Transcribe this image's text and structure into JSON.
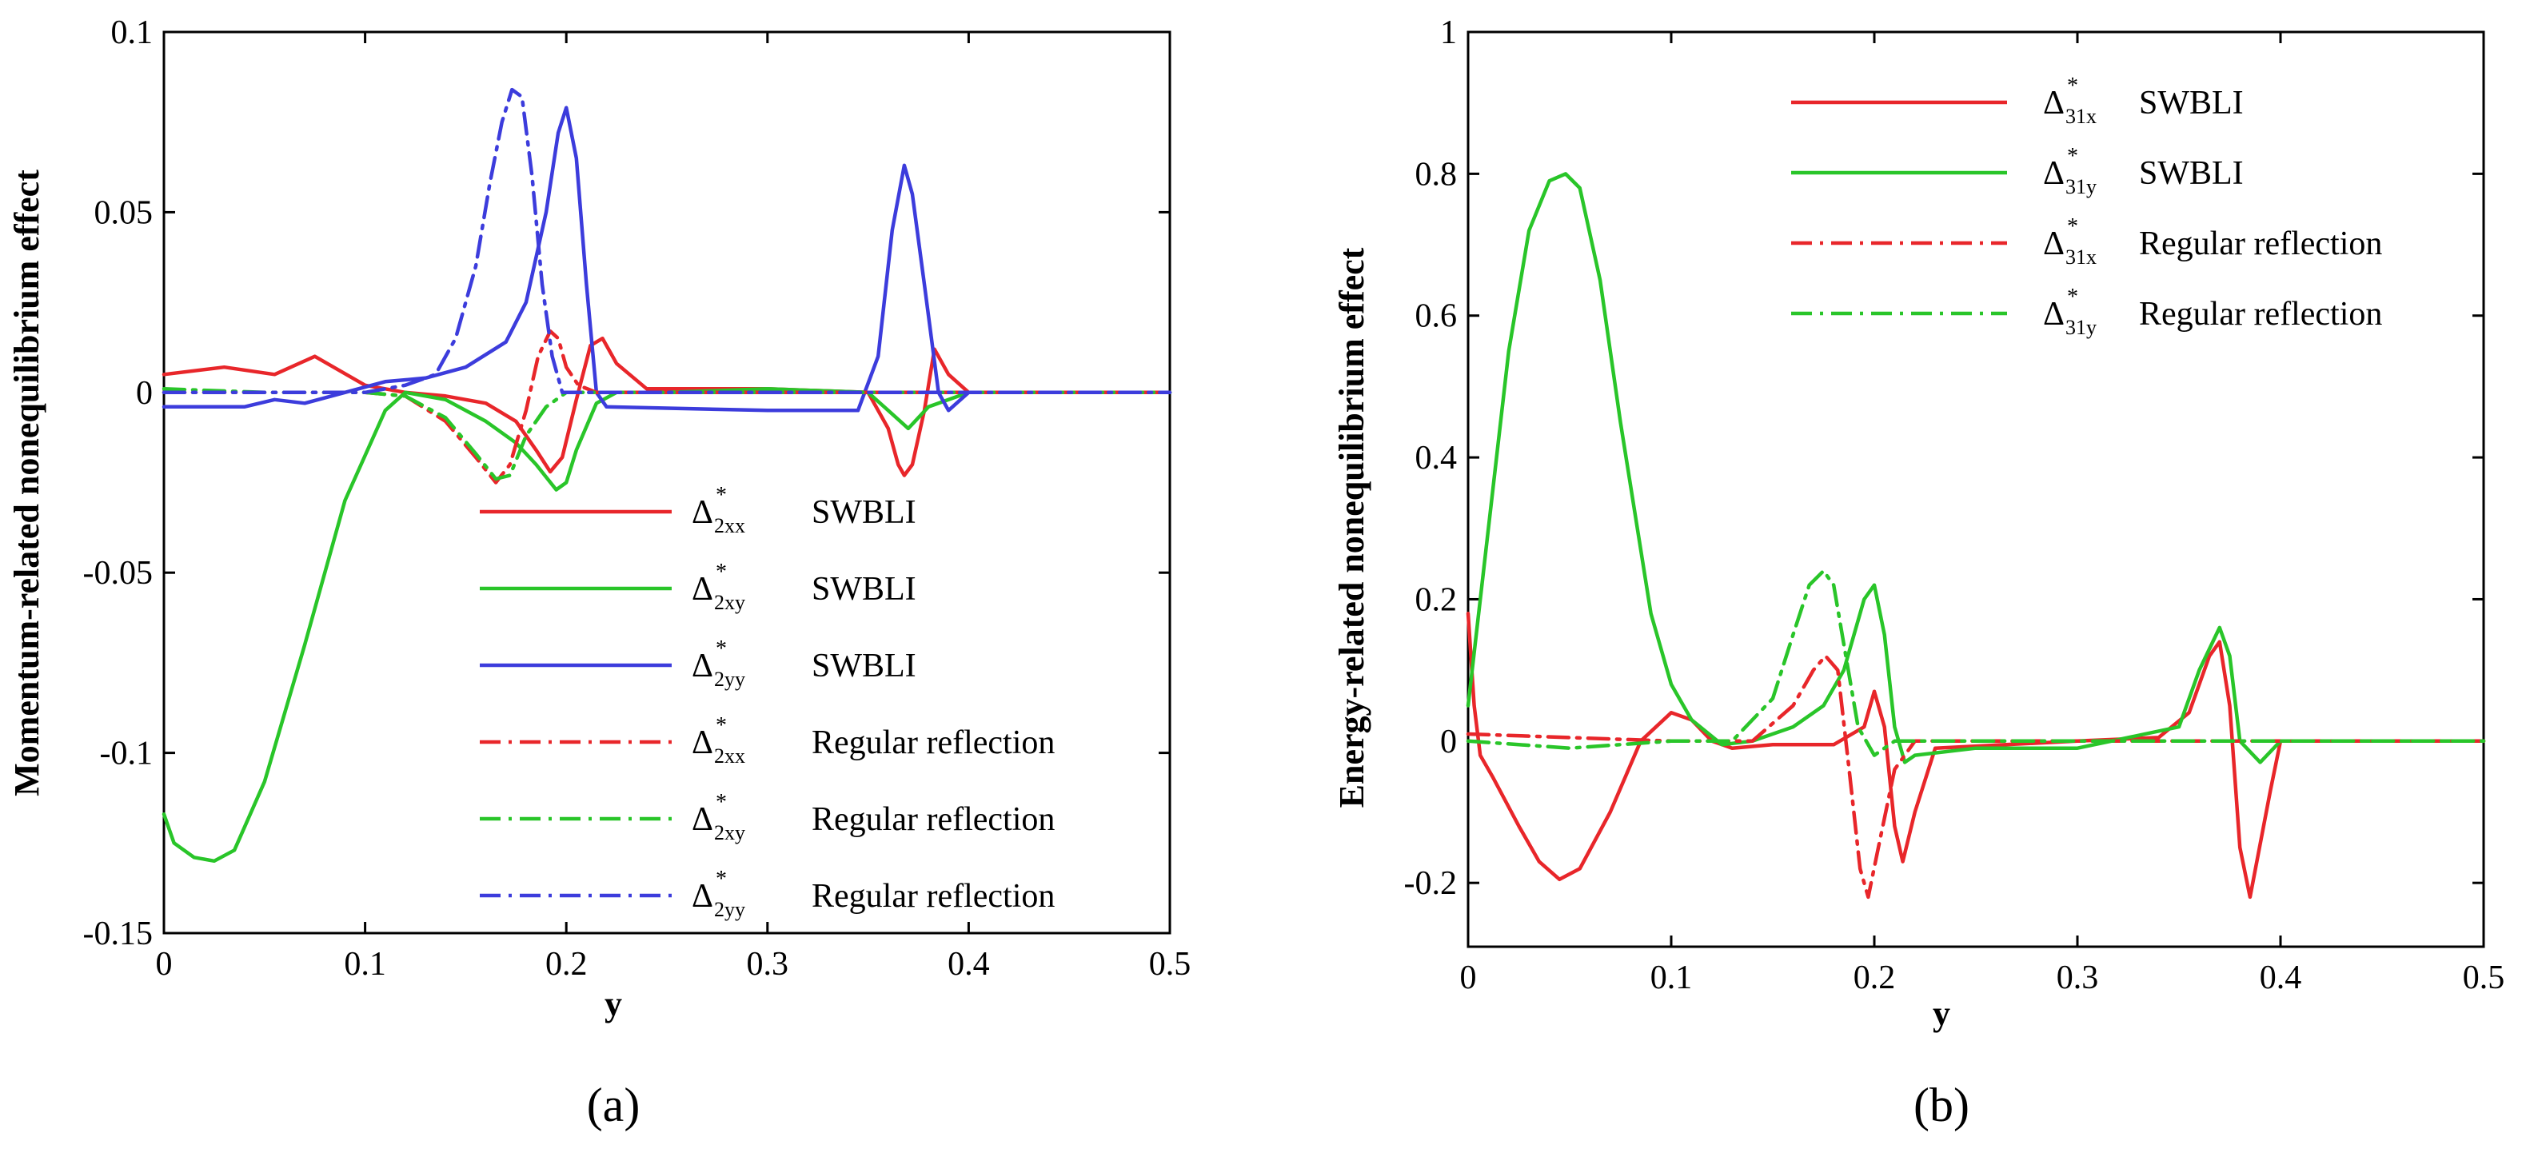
{
  "chart_data": [
    {
      "type": "line",
      "panel_label": "(a)",
      "xlabel": "y",
      "ylabel": "Momentum-related nonequilibrium effect",
      "xlim": [
        0,
        0.5
      ],
      "ylim": [
        -0.15,
        0.1
      ],
      "xticks": [
        "0",
        "0.1",
        "0.2",
        "0.3",
        "0.4",
        "0.5"
      ],
      "yticks": [
        "-0.15",
        "-0.1",
        "-0.05",
        "0",
        "0.05",
        "0.1"
      ],
      "legend_position": "lower-right",
      "series": [
        {
          "symbol": "Δ",
          "sup": "*",
          "sub": "2xx",
          "name": "SWBLI",
          "color": "#e8262a",
          "dash": "solid",
          "x": [
            0,
            0.03,
            0.055,
            0.075,
            0.1,
            0.12,
            0.14,
            0.16,
            0.175,
            0.185,
            0.192,
            0.198,
            0.205,
            0.212,
            0.218,
            0.225,
            0.24,
            0.3,
            0.35,
            0.36,
            0.365,
            0.368,
            0.372,
            0.378,
            0.383,
            0.39,
            0.4,
            0.5
          ],
          "y": [
            0.005,
            0.007,
            0.005,
            0.01,
            0.002,
            0.0,
            -0.001,
            -0.003,
            -0.008,
            -0.016,
            -0.022,
            -0.018,
            -0.002,
            0.013,
            0.015,
            0.008,
            0.001,
            0.001,
            0.0,
            -0.01,
            -0.02,
            -0.023,
            -0.02,
            -0.005,
            0.012,
            0.005,
            0.0,
            0.0
          ]
        },
        {
          "symbol": "Δ",
          "sup": "*",
          "sub": "2xy",
          "name": "SWBLI",
          "color": "#29c529",
          "dash": "solid",
          "x": [
            0,
            0.005,
            0.015,
            0.025,
            0.035,
            0.05,
            0.07,
            0.09,
            0.11,
            0.12,
            0.14,
            0.16,
            0.175,
            0.185,
            0.195,
            0.2,
            0.205,
            0.215,
            0.225,
            0.25,
            0.3,
            0.35,
            0.36,
            0.37,
            0.38,
            0.4,
            0.5
          ],
          "y": [
            -0.117,
            -0.125,
            -0.129,
            -0.13,
            -0.127,
            -0.108,
            -0.07,
            -0.03,
            -0.005,
            0.0,
            -0.002,
            -0.008,
            -0.014,
            -0.02,
            -0.027,
            -0.025,
            -0.016,
            -0.003,
            0.0,
            0.0,
            0.001,
            0.0,
            -0.005,
            -0.01,
            -0.004,
            0.0,
            0.0
          ]
        },
        {
          "symbol": "Δ",
          "sup": "*",
          "sub": "2yy",
          "name": "SWBLI",
          "color": "#3c3cdc",
          "dash": "solid",
          "x": [
            0,
            0.04,
            0.055,
            0.07,
            0.09,
            0.11,
            0.13,
            0.15,
            0.17,
            0.18,
            0.19,
            0.196,
            0.2,
            0.205,
            0.21,
            0.215,
            0.22,
            0.3,
            0.345,
            0.355,
            0.362,
            0.368,
            0.372,
            0.378,
            0.385,
            0.39,
            0.4,
            0.5
          ],
          "y": [
            -0.004,
            -0.004,
            -0.002,
            -0.003,
            0.0,
            0.003,
            0.004,
            0.007,
            0.014,
            0.025,
            0.05,
            0.072,
            0.079,
            0.065,
            0.03,
            0.0,
            -0.004,
            -0.005,
            -0.005,
            0.01,
            0.045,
            0.063,
            0.055,
            0.03,
            0.0,
            -0.005,
            0.0,
            0.0
          ]
        },
        {
          "symbol": "Δ",
          "sup": "*",
          "sub": "2xx",
          "name": "Regular reflection",
          "color": "#e8262a",
          "dash": "dashdot",
          "x": [
            0,
            0.1,
            0.12,
            0.14,
            0.155,
            0.165,
            0.172,
            0.18,
            0.186,
            0.192,
            0.196,
            0.2,
            0.206,
            0.215,
            0.3,
            0.5
          ],
          "y": [
            0.0,
            0.0,
            -0.001,
            -0.008,
            -0.018,
            -0.025,
            -0.02,
            -0.005,
            0.01,
            0.017,
            0.015,
            0.007,
            0.002,
            0.0,
            0.0,
            0.0
          ]
        },
        {
          "symbol": "Δ",
          "sup": "*",
          "sub": "2xy",
          "name": "Regular reflection",
          "color": "#29c529",
          "dash": "dashdot",
          "x": [
            0,
            0.05,
            0.1,
            0.12,
            0.14,
            0.155,
            0.165,
            0.172,
            0.18,
            0.19,
            0.2,
            0.22,
            0.3,
            0.5
          ],
          "y": [
            0.001,
            0.0,
            0.0,
            -0.001,
            -0.007,
            -0.017,
            -0.024,
            -0.023,
            -0.012,
            -0.004,
            0.0,
            0.0,
            0.0,
            0.0
          ]
        },
        {
          "symbol": "Δ",
          "sup": "*",
          "sub": "2yy",
          "name": "Regular reflection",
          "color": "#3c3cdc",
          "dash": "dashdot",
          "x": [
            0,
            0.1,
            0.12,
            0.135,
            0.145,
            0.155,
            0.162,
            0.168,
            0.173,
            0.178,
            0.183,
            0.188,
            0.193,
            0.198,
            0.205,
            0.3,
            0.5
          ],
          "y": [
            0.0,
            0.0,
            0.002,
            0.005,
            0.015,
            0.035,
            0.058,
            0.075,
            0.084,
            0.082,
            0.06,
            0.03,
            0.01,
            0.0,
            0.0,
            0.0,
            0.0
          ]
        }
      ]
    },
    {
      "type": "line",
      "panel_label": "(b)",
      "xlabel": "y",
      "ylabel": "Energy-related nonequilibrium effect",
      "xlim": [
        0,
        0.5
      ],
      "ylim": [
        -0.29,
        1.0
      ],
      "xticks": [
        "0",
        "0.1",
        "0.2",
        "0.3",
        "0.4",
        "0.5"
      ],
      "yticks": [
        "-0.2",
        "0",
        "0.2",
        "0.4",
        "0.6",
        "0.8",
        "1"
      ],
      "legend_position": "top-right",
      "series": [
        {
          "symbol": "Δ",
          "sup": "*",
          "sub": "31x",
          "name": "SWBLI",
          "color": "#e8262a",
          "dash": "solid",
          "x": [
            0,
            0.003,
            0.006,
            0.012,
            0.025,
            0.035,
            0.045,
            0.055,
            0.07,
            0.085,
            0.1,
            0.11,
            0.12,
            0.13,
            0.15,
            0.18,
            0.195,
            0.2,
            0.205,
            0.21,
            0.214,
            0.22,
            0.23,
            0.3,
            0.34,
            0.355,
            0.365,
            0.37,
            0.375,
            0.38,
            0.385,
            0.395,
            0.4,
            0.5
          ],
          "y": [
            0.18,
            0.05,
            -0.02,
            -0.05,
            -0.12,
            -0.17,
            -0.195,
            -0.18,
            -0.1,
            0.0,
            0.04,
            0.03,
            0.0,
            -0.01,
            -0.005,
            -0.005,
            0.02,
            0.07,
            0.02,
            -0.12,
            -0.17,
            -0.1,
            -0.01,
            0.0,
            0.005,
            0.04,
            0.12,
            0.14,
            0.05,
            -0.15,
            -0.22,
            -0.07,
            0.0,
            0.0
          ]
        },
        {
          "symbol": "Δ",
          "sup": "*",
          "sub": "31y",
          "name": "SWBLI",
          "color": "#29c529",
          "dash": "solid",
          "x": [
            0,
            0.01,
            0.02,
            0.03,
            0.04,
            0.048,
            0.055,
            0.065,
            0.075,
            0.09,
            0.1,
            0.11,
            0.125,
            0.14,
            0.16,
            0.175,
            0.185,
            0.195,
            0.2,
            0.205,
            0.21,
            0.215,
            0.22,
            0.25,
            0.3,
            0.35,
            0.36,
            0.37,
            0.375,
            0.38,
            0.39,
            0.4,
            0.5
          ],
          "y": [
            0.05,
            0.3,
            0.55,
            0.72,
            0.79,
            0.8,
            0.78,
            0.65,
            0.45,
            0.18,
            0.08,
            0.03,
            -0.005,
            0.0,
            0.02,
            0.05,
            0.1,
            0.2,
            0.22,
            0.15,
            0.02,
            -0.03,
            -0.02,
            -0.01,
            -0.01,
            0.02,
            0.1,
            0.16,
            0.12,
            0.0,
            -0.03,
            0.0,
            0.0
          ]
        },
        {
          "symbol": "Δ",
          "sup": "*",
          "sub": "31x",
          "name": "Regular reflection",
          "color": "#e8262a",
          "dash": "dashdot",
          "x": [
            0,
            0.1,
            0.14,
            0.16,
            0.17,
            0.176,
            0.182,
            0.188,
            0.193,
            0.197,
            0.202,
            0.21,
            0.22,
            0.3,
            0.5
          ],
          "y": [
            0.01,
            0.0,
            0.0,
            0.05,
            0.1,
            0.12,
            0.1,
            -0.05,
            -0.18,
            -0.22,
            -0.15,
            -0.04,
            0.0,
            0.0,
            0.0
          ]
        },
        {
          "symbol": "Δ",
          "sup": "*",
          "sub": "31y",
          "name": "Regular reflection",
          "color": "#29c529",
          "dash": "dashdot",
          "x": [
            0,
            0.05,
            0.1,
            0.13,
            0.15,
            0.16,
            0.168,
            0.175,
            0.18,
            0.186,
            0.192,
            0.2,
            0.21,
            0.3,
            0.5
          ],
          "y": [
            0.0,
            -0.01,
            0.0,
            0.0,
            0.06,
            0.15,
            0.22,
            0.24,
            0.22,
            0.12,
            0.02,
            -0.02,
            0.0,
            0.0,
            0.0
          ]
        }
      ]
    }
  ]
}
